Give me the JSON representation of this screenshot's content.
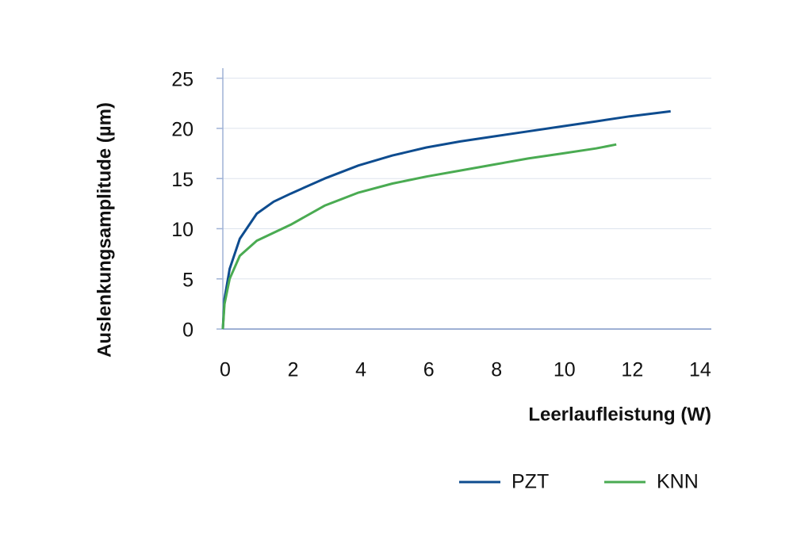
{
  "chart_data": {
    "type": "line",
    "x_label": "Leerlaufleistung (W)",
    "y_label": "Auslenkungsamplitude (µm)",
    "xlim": [
      0,
      14.4
    ],
    "ylim": [
      0,
      26
    ],
    "xticks": [
      0,
      2,
      4,
      6,
      8,
      10,
      12,
      14
    ],
    "yticks": [
      0,
      5,
      10,
      15,
      20,
      25
    ],
    "grid": true,
    "legend": "bottom-right",
    "series": [
      {
        "name": "PZT",
        "color": "#0e4c8f",
        "x": [
          0,
          0.05,
          0.2,
          0.5,
          1,
          1.5,
          2,
          3,
          4,
          5,
          6,
          7,
          8,
          9,
          10,
          11,
          12,
          13.2
        ],
        "values": [
          0,
          3,
          6,
          9,
          11.5,
          12.7,
          13.5,
          15,
          16.3,
          17.3,
          18.1,
          18.7,
          19.2,
          19.7,
          20.2,
          20.7,
          21.2,
          21.7
        ]
      },
      {
        "name": "KNN",
        "color": "#4aab52",
        "x": [
          0,
          0.05,
          0.2,
          0.5,
          1,
          1.5,
          2,
          3,
          4,
          5,
          6,
          7,
          8,
          9,
          10,
          11,
          11.6
        ],
        "values": [
          0,
          2.5,
          5,
          7.3,
          8.8,
          9.6,
          10.4,
          12.3,
          13.6,
          14.5,
          15.2,
          15.8,
          16.4,
          17,
          17.5,
          18,
          18.4
        ]
      }
    ]
  }
}
